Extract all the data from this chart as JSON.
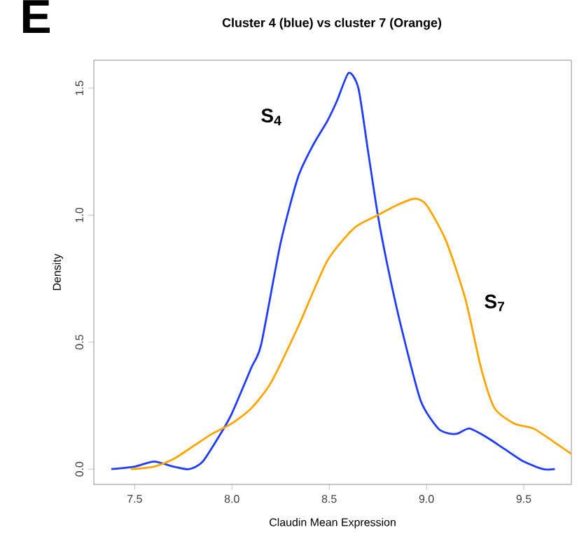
{
  "chart_data": {
    "type": "line",
    "title": "Cluster 4 (blue) vs cluster 7 (Orange)",
    "xlabel": "Claudin Mean Expression",
    "ylabel": "Density",
    "annotations": [
      "E"
    ],
    "xlim": [
      7.29,
      9.745
    ],
    "ylim": [
      -0.06,
      1.61
    ],
    "xticks": [
      {
        "value": 7.5,
        "label": "7.5"
      },
      {
        "value": 8.0,
        "label": "8.0"
      },
      {
        "value": 8.5,
        "label": "8.5"
      },
      {
        "value": 9.0,
        "label": "9.0"
      },
      {
        "value": 9.5,
        "label": "9.5"
      }
    ],
    "yticks": [
      {
        "value": 0,
        "label": "0.0"
      },
      {
        "value": 0.5,
        "label": "0.5"
      },
      {
        "value": 1.0,
        "label": "1.0"
      },
      {
        "value": 1.5,
        "label": "1.5"
      }
    ],
    "marker": "none",
    "line_style": "solid",
    "series": [
      {
        "name": "S$_{4}$",
        "color": "#1f3cff",
        "x": [
          7.38,
          7.5,
          7.6,
          7.7,
          7.78,
          7.85,
          7.95,
          8.0,
          8.1,
          8.15,
          8.25,
          8.34,
          8.42,
          8.49,
          8.54,
          8.6,
          8.65,
          8.7,
          8.75,
          8.8,
          8.87,
          8.97,
          9.06,
          9.12,
          9.16,
          9.22,
          9.3,
          9.4,
          9.5,
          9.6,
          9.66
        ],
        "values": [
          0,
          0.01,
          0.03,
          0.01,
          0.0,
          0.03,
          0.15,
          0.22,
          0.4,
          0.49,
          0.89,
          1.15,
          1.28,
          1.37,
          1.45,
          1.56,
          1.5,
          1.25,
          1.0,
          0.8,
          0.56,
          0.27,
          0.16,
          0.14,
          0.14,
          0.16,
          0.13,
          0.08,
          0.03,
          0.0,
          0.0
        ]
      },
      {
        "name": "S$_{7}$",
        "color": "#ffa500",
        "x": [
          7.48,
          7.6,
          7.7,
          7.8,
          7.9,
          8.0,
          8.1,
          8.2,
          8.34,
          8.49,
          8.63,
          8.75,
          8.85,
          8.94,
          9.0,
          9.1,
          9.2,
          9.28,
          9.35,
          9.45,
          9.55,
          9.65,
          9.745
        ],
        "values": [
          0,
          0.01,
          0.04,
          0.09,
          0.14,
          0.18,
          0.24,
          0.34,
          0.56,
          0.82,
          0.95,
          1.0,
          1.04,
          1.065,
          1.04,
          0.9,
          0.67,
          0.4,
          0.24,
          0.18,
          0.16,
          0.11,
          0.06
        ]
      }
    ]
  }
}
